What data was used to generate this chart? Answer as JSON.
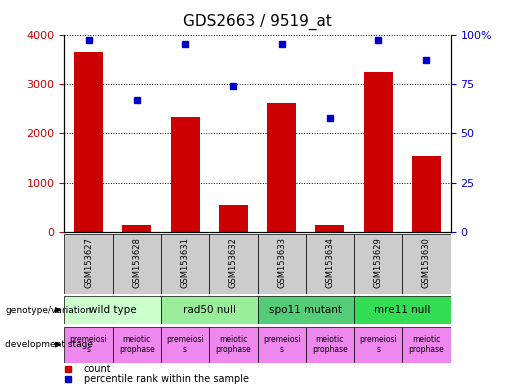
{
  "title": "GDS2663 / 9519_at",
  "samples": [
    "GSM153627",
    "GSM153628",
    "GSM153631",
    "GSM153632",
    "GSM153633",
    "GSM153634",
    "GSM153629",
    "GSM153630"
  ],
  "counts": [
    3650,
    150,
    2330,
    550,
    2620,
    150,
    3250,
    1550
  ],
  "percentiles": [
    97,
    67,
    95,
    74,
    95,
    58,
    97,
    87
  ],
  "ylim_left": [
    0,
    4000
  ],
  "ylim_right": [
    0,
    100
  ],
  "yticks_left": [
    0,
    1000,
    2000,
    3000,
    4000
  ],
  "yticks_right": [
    0,
    25,
    50,
    75,
    100
  ],
  "bar_color": "#cc0000",
  "dot_color": "#0000cc",
  "title_fontsize": 11,
  "genotype_groups": [
    {
      "label": "wild type",
      "start": 0,
      "end": 2,
      "color": "#ccffcc"
    },
    {
      "label": "rad50 null",
      "start": 2,
      "end": 4,
      "color": "#99ee99"
    },
    {
      "label": "spo11 mutant",
      "start": 4,
      "end": 6,
      "color": "#55cc77"
    },
    {
      "label": "mre11 null",
      "start": 6,
      "end": 8,
      "color": "#33dd55"
    }
  ],
  "dev_stage_labels": [
    "premeiosi\ns",
    "meiotic\nprophase",
    "premeiosi\ns",
    "meiotic\nprophase",
    "premeiosi\ns",
    "meiotic\nprophase",
    "premeiosi\ns",
    "meiotic\nprophase"
  ],
  "dev_stage_color": "#ee88ee",
  "left_axis_color": "#cc0000",
  "right_axis_color": "#0000cc",
  "bg_color": "#ffffff",
  "xticklabel_bg": "#cccccc"
}
